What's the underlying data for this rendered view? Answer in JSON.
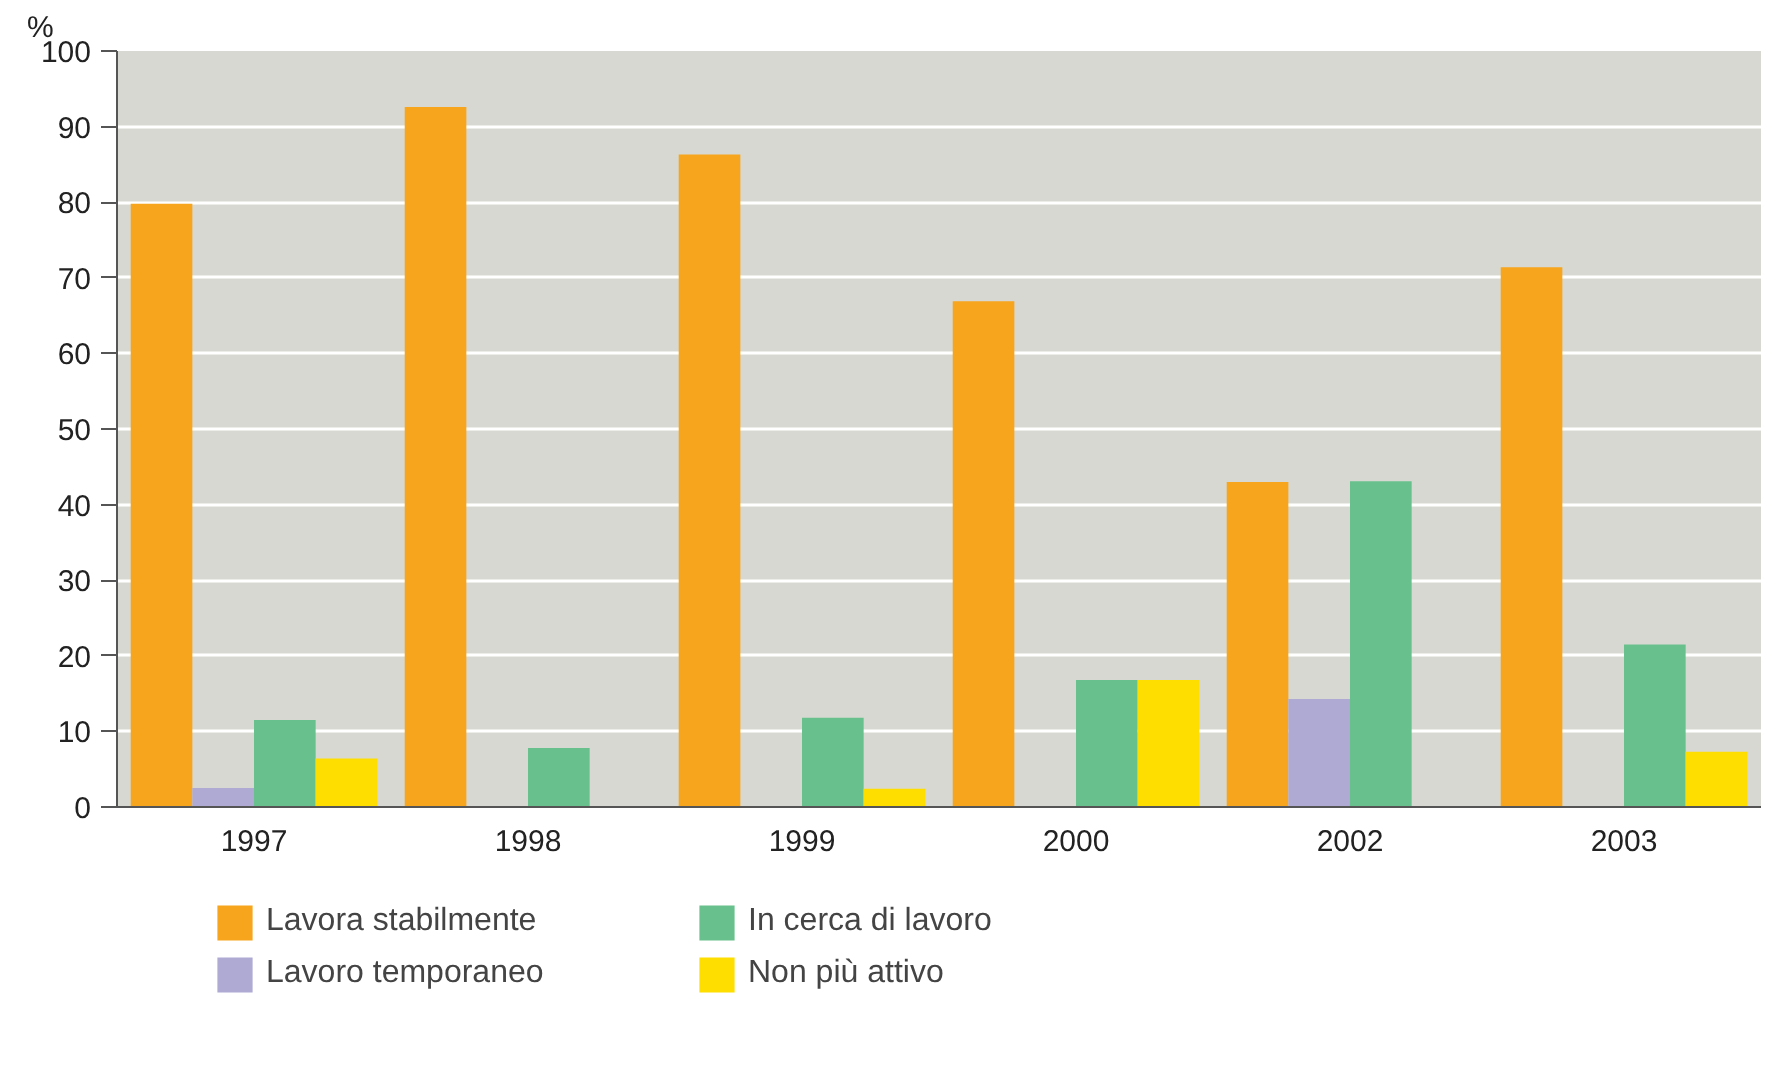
{
  "chart_data": {
    "type": "bar",
    "ylabel": "%",
    "categories": [
      "1997",
      "1998",
      "1999",
      "2000",
      "2002",
      "2003"
    ],
    "series": [
      {
        "name": "Lavora stabilmente",
        "color": "#f7a51c",
        "values": [
          79.8,
          92.6,
          86.3,
          66.9,
          43.0,
          71.4
        ]
      },
      {
        "name": "Lavoro temporaneo",
        "color": "#aeaad3",
        "values": [
          2.5,
          null,
          null,
          null,
          14.3,
          null
        ]
      },
      {
        "name": "In cerca di lavoro",
        "color": "#68c18c",
        "values": [
          11.5,
          7.8,
          11.8,
          16.8,
          43.1,
          21.5
        ]
      },
      {
        "name": "Non più attivo",
        "color": "#fedd00",
        "values": [
          6.4,
          null,
          2.4,
          16.8,
          null,
          7.3
        ]
      }
    ],
    "ylim": [
      0,
      100
    ],
    "yticks": [
      0,
      10,
      20,
      30,
      40,
      50,
      60,
      70,
      80,
      90,
      100
    ],
    "grid": "y",
    "legend": "bottom"
  }
}
